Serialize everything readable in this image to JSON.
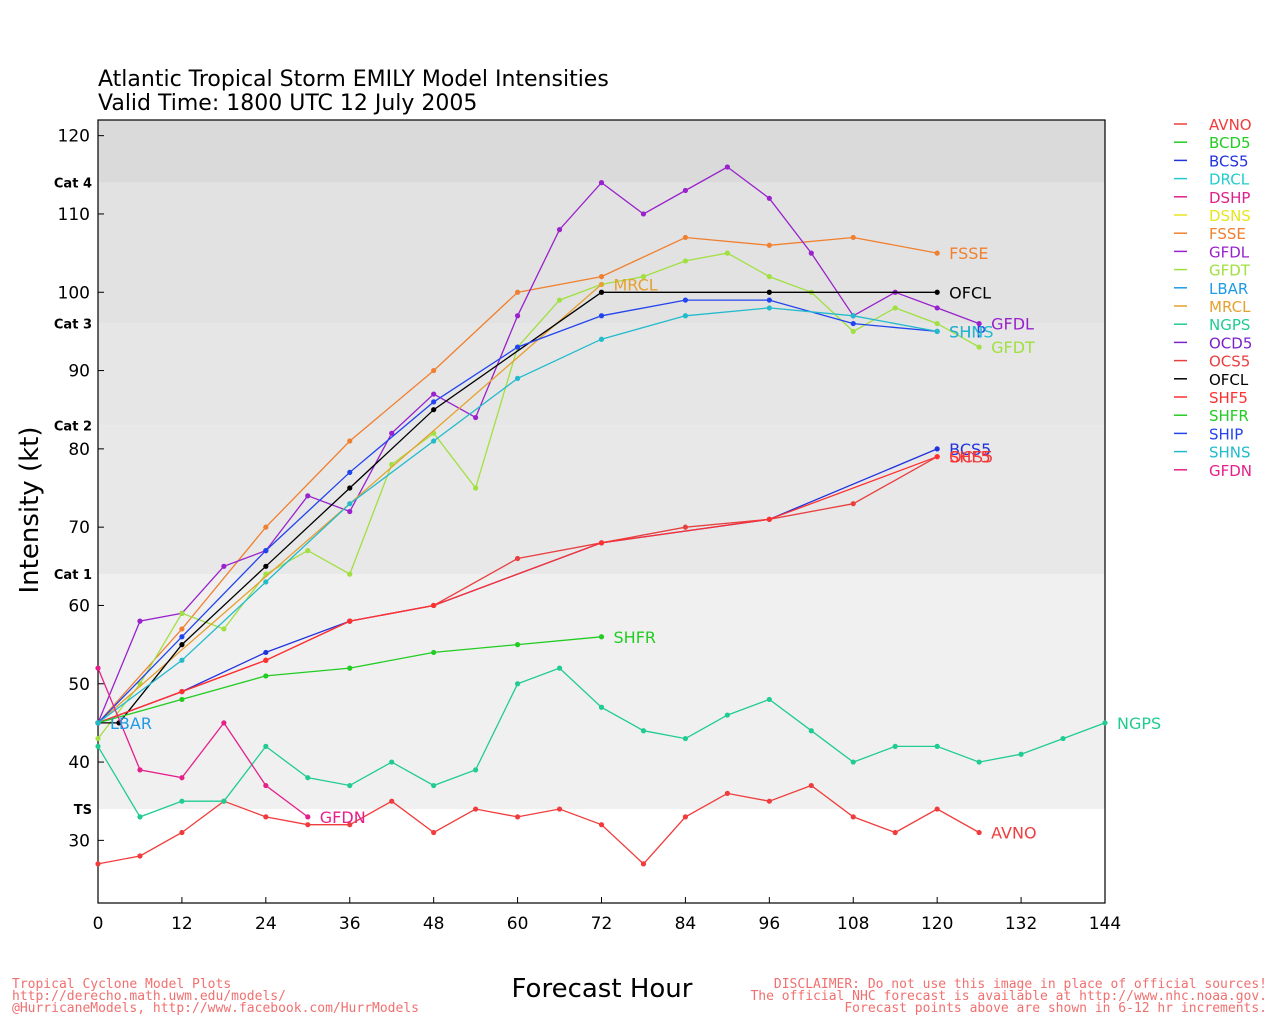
{
  "footer": {
    "left_lines": [
      "Tropical Cyclone Model Plots",
      "http://derecho.math.uwm.edu/models/",
      "@HurricaneModels, http://www.facebook.com/HurrModels"
    ],
    "right_lines": [
      "DISCLAIMER: Do not use this image in place of official sources!",
      "The official NHC forecast is available at http://www.nhc.noaa.gov.",
      "Forecast points above are shown in 6-12 hr increments."
    ]
  },
  "chart_data": {
    "type": "line",
    "title": "Atlantic Tropical Storm EMILY Model Intensities",
    "subtitle": "Valid Time: 1800 UTC 12 July 2005",
    "xlabel": "Forecast Hour",
    "ylabel": "Intensity (kt)",
    "xlim": [
      0,
      144
    ],
    "ylim": [
      22,
      122
    ],
    "xticks": [
      0,
      12,
      24,
      36,
      48,
      60,
      72,
      84,
      96,
      108,
      120,
      132,
      144
    ],
    "yticks": [
      30,
      40,
      50,
      60,
      70,
      80,
      90,
      100,
      110,
      120
    ],
    "categories_bands": [
      {
        "label": "TS",
        "from": 34,
        "to": 64,
        "color": "#f0f0f0"
      },
      {
        "label": "Cat 1",
        "from": 64,
        "to": 83,
        "color": "#e8e8e8"
      },
      {
        "label": "Cat 2",
        "from": 83,
        "to": 96,
        "color": "#e6e6e6"
      },
      {
        "label": "Cat 3",
        "from": 96,
        "to": 114,
        "color": "#e2e2e2"
      },
      {
        "label": "Cat 4",
        "from": 114,
        "to": 122,
        "color": "#dadada"
      }
    ],
    "legend_position": "right",
    "series": [
      {
        "name": "AVNO",
        "color": "#f03c3c",
        "label": "AVNO",
        "points": [
          [
            0,
            27
          ],
          [
            6,
            28
          ],
          [
            12,
            31
          ],
          [
            18,
            35
          ],
          [
            24,
            33
          ],
          [
            30,
            32
          ],
          [
            36,
            32
          ],
          [
            42,
            35
          ],
          [
            48,
            31
          ],
          [
            54,
            34
          ],
          [
            60,
            33
          ],
          [
            66,
            34
          ],
          [
            72,
            32
          ],
          [
            78,
            27
          ],
          [
            84,
            33
          ],
          [
            90,
            36
          ],
          [
            96,
            35
          ],
          [
            102,
            37
          ],
          [
            108,
            33
          ],
          [
            114,
            31
          ],
          [
            120,
            34
          ],
          [
            126,
            31
          ]
        ]
      },
      {
        "name": "BCD5",
        "color": "#22cc22",
        "label": "",
        "points": []
      },
      {
        "name": "BCS5",
        "color": "#2233dd",
        "label": "BCS5",
        "points": [
          [
            0,
            45
          ],
          [
            12,
            49
          ],
          [
            24,
            54
          ],
          [
            36,
            58
          ],
          [
            48,
            60
          ],
          [
            72,
            68
          ],
          [
            96,
            71
          ],
          [
            120,
            80
          ]
        ]
      },
      {
        "name": "DRCL",
        "color": "#22cccc",
        "label": "",
        "points": []
      },
      {
        "name": "DSHP",
        "color": "#e0208a",
        "label": "",
        "points": []
      },
      {
        "name": "DSNS",
        "color": "#e6e620",
        "label": "",
        "points": []
      },
      {
        "name": "FSSE",
        "color": "#f08030",
        "label": "FSSE",
        "points": [
          [
            0,
            45
          ],
          [
            12,
            57
          ],
          [
            24,
            70
          ],
          [
            36,
            81
          ],
          [
            48,
            90
          ],
          [
            60,
            100
          ],
          [
            72,
            102
          ],
          [
            84,
            107
          ],
          [
            96,
            106
          ],
          [
            108,
            107
          ],
          [
            120,
            105
          ]
        ]
      },
      {
        "name": "GFDL",
        "color": "#9922cc",
        "label": "GFDL",
        "points": [
          [
            0,
            45
          ],
          [
            6,
            58
          ],
          [
            12,
            59
          ],
          [
            18,
            65
          ],
          [
            24,
            67
          ],
          [
            30,
            74
          ],
          [
            36,
            72
          ],
          [
            42,
            82
          ],
          [
            48,
            87
          ],
          [
            54,
            84
          ],
          [
            60,
            97
          ],
          [
            66,
            108
          ],
          [
            72,
            114
          ],
          [
            78,
            110
          ],
          [
            84,
            113
          ],
          [
            90,
            116
          ],
          [
            96,
            112
          ],
          [
            102,
            105
          ],
          [
            108,
            97
          ],
          [
            114,
            100
          ],
          [
            120,
            98
          ],
          [
            126,
            96
          ]
        ]
      },
      {
        "name": "GFDT",
        "color": "#a0e040",
        "label": "GFDT",
        "points": [
          [
            0,
            43
          ],
          [
            6,
            50
          ],
          [
            12,
            59
          ],
          [
            18,
            57
          ],
          [
            24,
            64
          ],
          [
            30,
            67
          ],
          [
            36,
            64
          ],
          [
            42,
            78
          ],
          [
            48,
            82
          ],
          [
            54,
            75
          ],
          [
            60,
            93
          ],
          [
            66,
            99
          ],
          [
            72,
            101
          ],
          [
            78,
            102
          ],
          [
            84,
            104
          ],
          [
            90,
            105
          ],
          [
            96,
            102
          ],
          [
            102,
            100
          ],
          [
            108,
            95
          ],
          [
            114,
            98
          ],
          [
            120,
            96
          ],
          [
            126,
            93
          ]
        ]
      },
      {
        "name": "LBAR",
        "color": "#1e9be6",
        "label": "LBAR",
        "points": [
          [
            0,
            45
          ]
        ]
      },
      {
        "name": "MRCL",
        "color": "#e6a030",
        "label": "MRCL",
        "points": [
          [
            0,
            45
          ],
          [
            72,
            101
          ]
        ]
      },
      {
        "name": "NGPS",
        "color": "#20cc90",
        "label": "NGPS",
        "points": [
          [
            0,
            42
          ],
          [
            6,
            33
          ],
          [
            12,
            35
          ],
          [
            18,
            35
          ],
          [
            24,
            42
          ],
          [
            30,
            38
          ],
          [
            36,
            37
          ],
          [
            42,
            40
          ],
          [
            48,
            37
          ],
          [
            54,
            39
          ],
          [
            60,
            50
          ],
          [
            66,
            52
          ],
          [
            72,
            47
          ],
          [
            78,
            44
          ],
          [
            84,
            43
          ],
          [
            90,
            46
          ],
          [
            96,
            48
          ],
          [
            102,
            44
          ],
          [
            108,
            40
          ],
          [
            114,
            42
          ],
          [
            120,
            42
          ],
          [
            126,
            40
          ],
          [
            132,
            41
          ],
          [
            138,
            43
          ],
          [
            144,
            45
          ]
        ]
      },
      {
        "name": "OCD5",
        "color": "#7a22cc",
        "label": "",
        "points": []
      },
      {
        "name": "OCS5",
        "color": "#e84040",
        "label": "OCS5",
        "points": [
          [
            0,
            45
          ],
          [
            12,
            49
          ],
          [
            24,
            53
          ],
          [
            36,
            58
          ],
          [
            48,
            60
          ],
          [
            60,
            66
          ],
          [
            72,
            68
          ],
          [
            84,
            70
          ],
          [
            96,
            71
          ],
          [
            108,
            73
          ],
          [
            120,
            79
          ]
        ]
      },
      {
        "name": "OFCL",
        "color": "#000000",
        "label": "OFCL",
        "points": [
          [
            0,
            45
          ],
          [
            3,
            45
          ],
          [
            12,
            55
          ],
          [
            24,
            65
          ],
          [
            36,
            75
          ],
          [
            48,
            85
          ],
          [
            72,
            100
          ],
          [
            96,
            100
          ],
          [
            120,
            100
          ]
        ]
      },
      {
        "name": "SHF5",
        "color": "#ff3030",
        "label": "SHF5",
        "points": [
          [
            0,
            45
          ],
          [
            12,
            49
          ],
          [
            24,
            53
          ],
          [
            36,
            58
          ],
          [
            48,
            60
          ],
          [
            72,
            68
          ],
          [
            96,
            71
          ],
          [
            120,
            79
          ]
        ]
      },
      {
        "name": "SHFR",
        "color": "#22cc22",
        "label": "SHFR",
        "points": [
          [
            0,
            45
          ],
          [
            12,
            48
          ],
          [
            24,
            51
          ],
          [
            36,
            52
          ],
          [
            48,
            54
          ],
          [
            60,
            55
          ],
          [
            72,
            56
          ]
        ]
      },
      {
        "name": "SHIP",
        "color": "#2244ee",
        "label": "SHIP",
        "points": [
          [
            0,
            45
          ],
          [
            12,
            56
          ],
          [
            24,
            67
          ],
          [
            36,
            77
          ],
          [
            48,
            86
          ],
          [
            60,
            93
          ],
          [
            72,
            97
          ],
          [
            84,
            99
          ],
          [
            96,
            99
          ],
          [
            108,
            96
          ],
          [
            120,
            95
          ]
        ]
      },
      {
        "name": "SHNS",
        "color": "#22bbcc",
        "label": "SHNS",
        "points": [
          [
            0,
            45
          ],
          [
            12,
            53
          ],
          [
            24,
            63
          ],
          [
            36,
            73
          ],
          [
            48,
            81
          ],
          [
            60,
            89
          ],
          [
            72,
            94
          ],
          [
            84,
            97
          ],
          [
            96,
            98
          ],
          [
            108,
            97
          ],
          [
            120,
            95
          ]
        ]
      },
      {
        "name": "GFDN",
        "color": "#e6208a",
        "label": "GFDN",
        "points": [
          [
            0,
            52
          ],
          [
            6,
            39
          ],
          [
            12,
            38
          ],
          [
            18,
            45
          ],
          [
            24,
            37
          ],
          [
            30,
            33
          ]
        ]
      }
    ]
  }
}
